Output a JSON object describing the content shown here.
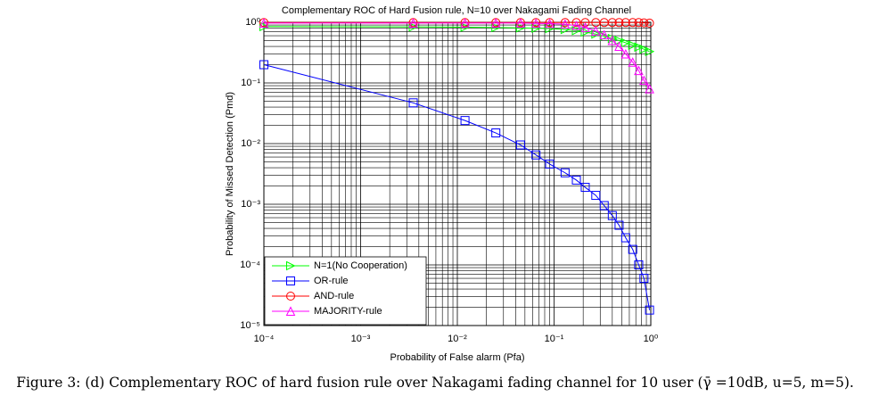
{
  "chart_data": {
    "type": "line",
    "title": "Complementary ROC of Hard Fusion rule, N=10 over Nakagami Fading Channel",
    "xlabel": "Probability of False alarm (Pfa)",
    "ylabel": "Probability of Missed Detection (Pmd)",
    "xscale": "log",
    "yscale": "log",
    "grid": true,
    "minor_grid": true,
    "legend": "lower left",
    "xlim": [
      0.0001,
      1
    ],
    "ylim": [
      1e-05,
      1
    ],
    "xticks": [
      {
        "value": 0.0001,
        "label": "10⁻⁴"
      },
      {
        "value": 0.001,
        "label": "10⁻³"
      },
      {
        "value": 0.01,
        "label": "10⁻²"
      },
      {
        "value": 0.1,
        "label": "10⁻¹"
      },
      {
        "value": 1,
        "label": "10⁰"
      }
    ],
    "yticks": [
      {
        "value": 1e-05,
        "label": "10⁻⁵"
      },
      {
        "value": 0.0001,
        "label": "10⁻⁴"
      },
      {
        "value": 0.001,
        "label": "10⁻³"
      },
      {
        "value": 0.01,
        "label": "10⁻²"
      },
      {
        "value": 0.1,
        "label": "10⁻¹"
      },
      {
        "value": 1,
        "label": "10⁰"
      }
    ],
    "x": [
      0.0001,
      0.0035,
      0.012,
      0.025,
      0.045,
      0.065,
      0.09,
      0.13,
      0.17,
      0.21,
      0.27,
      0.33,
      0.4,
      0.47,
      0.55,
      0.65,
      0.75,
      0.85,
      0.97
    ],
    "series": [
      {
        "name": "N=1(No Cooperation)",
        "color": "#00ff00",
        "marker": "triangle-right",
        "values": [
          0.85,
          0.84,
          0.83,
          0.82,
          0.81,
          0.8,
          0.79,
          0.76,
          0.73,
          0.69,
          0.64,
          0.59,
          0.54,
          0.5,
          0.46,
          0.42,
          0.39,
          0.36,
          0.33
        ]
      },
      {
        "name": "OR-rule",
        "color": "#0000ff",
        "marker": "square",
        "values": [
          0.2,
          0.047,
          0.024,
          0.015,
          0.0095,
          0.0065,
          0.0046,
          0.0033,
          0.0025,
          0.0019,
          0.0014,
          0.00095,
          0.00065,
          0.00045,
          0.00028,
          0.00018,
          0.0001,
          6e-05,
          1.8e-05
        ]
      },
      {
        "name": "AND-rule",
        "color": "#ff0000",
        "marker": "circle",
        "values": [
          0.99,
          0.99,
          0.99,
          0.99,
          0.99,
          0.99,
          0.99,
          0.99,
          0.99,
          0.99,
          0.99,
          0.99,
          0.99,
          0.99,
          0.99,
          0.99,
          0.99,
          0.98,
          0.97
        ]
      },
      {
        "name": "MAJORITY-rule",
        "color": "#ff00ff",
        "marker": "triangle-up",
        "values": [
          0.97,
          0.97,
          0.97,
          0.97,
          0.97,
          0.96,
          0.95,
          0.93,
          0.88,
          0.82,
          0.72,
          0.62,
          0.5,
          0.4,
          0.3,
          0.22,
          0.16,
          0.11,
          0.08
        ]
      }
    ]
  },
  "caption": "Figure 3: (d) Complementary ROC of hard fusion rule over Nakagami fading channel for 10 user (γ̄ =10dB, u=5, m=5)."
}
